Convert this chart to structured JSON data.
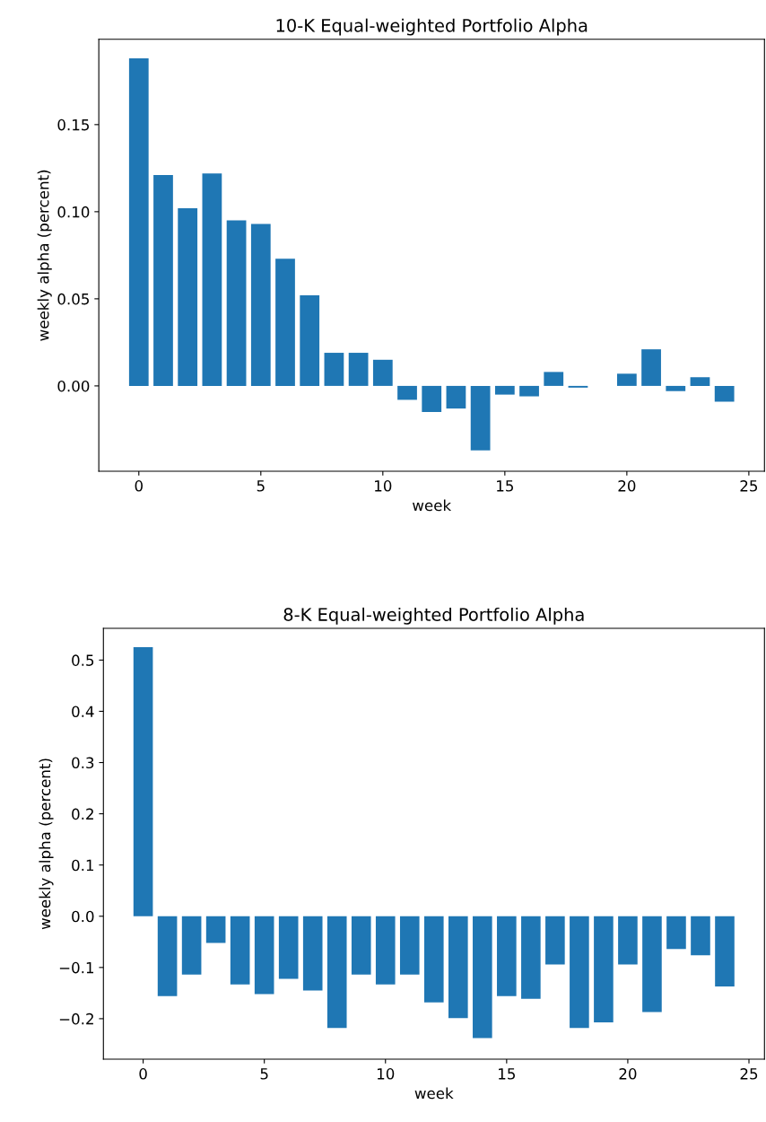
{
  "chart_data": [
    {
      "type": "bar",
      "title": "10-K Equal-weighted Portfolio Alpha",
      "xlabel": "week",
      "ylabel": "weekly alpha (percent)",
      "x": [
        0,
        1,
        2,
        3,
        4,
        5,
        6,
        7,
        8,
        9,
        10,
        11,
        12,
        13,
        14,
        15,
        16,
        17,
        18,
        19,
        20,
        21,
        22,
        23,
        24
      ],
      "values": [
        0.188,
        0.121,
        0.102,
        0.122,
        0.095,
        0.093,
        0.073,
        0.052,
        0.019,
        0.019,
        0.015,
        -0.008,
        -0.015,
        -0.013,
        -0.037,
        -0.005,
        -0.006,
        0.008,
        -0.001,
        0.0,
        0.007,
        0.021,
        -0.003,
        0.005,
        -0.009
      ],
      "color": "#1f77b4",
      "xlim": [
        -1.64,
        25.64
      ],
      "xticks": [
        0,
        5,
        10,
        15,
        20,
        25
      ],
      "ylim": [
        -0.049,
        0.199
      ],
      "yticks": [
        {
          "value": 0,
          "label": "0.00"
        },
        {
          "value": 0.05,
          "label": "0.05"
        },
        {
          "value": 0.1,
          "label": "0.10"
        },
        {
          "value": 0.15,
          "label": "0.15"
        }
      ]
    },
    {
      "type": "bar",
      "title": "8-K Equal-weighted Portfolio Alpha",
      "xlabel": "week",
      "ylabel": "weekly alpha (percent)",
      "x": [
        0,
        1,
        2,
        3,
        4,
        5,
        6,
        7,
        8,
        9,
        10,
        11,
        12,
        13,
        14,
        15,
        16,
        17,
        18,
        19,
        20,
        21,
        22,
        23,
        24
      ],
      "values": [
        0.525,
        -0.156,
        -0.114,
        -0.052,
        -0.133,
        -0.152,
        -0.122,
        -0.145,
        -0.218,
        -0.114,
        -0.133,
        -0.114,
        -0.168,
        -0.199,
        -0.238,
        -0.156,
        -0.161,
        -0.094,
        -0.218,
        -0.207,
        -0.094,
        -0.187,
        -0.064,
        -0.076,
        -0.137
      ],
      "color": "#1f77b4",
      "xlim": [
        -1.64,
        25.64
      ],
      "xticks": [
        0,
        5,
        10,
        15,
        20,
        25
      ],
      "ylim": [
        -0.279,
        0.562
      ],
      "yticks": [
        {
          "value": -0.2,
          "label": "−0.2"
        },
        {
          "value": -0.1,
          "label": "−0.1"
        },
        {
          "value": 0,
          "label": "0.0"
        },
        {
          "value": 0.1,
          "label": "0.1"
        },
        {
          "value": 0.2,
          "label": "0.2"
        },
        {
          "value": 0.3,
          "label": "0.3"
        },
        {
          "value": 0.4,
          "label": "0.4"
        },
        {
          "value": 0.5,
          "label": "0.5"
        }
      ]
    }
  ]
}
